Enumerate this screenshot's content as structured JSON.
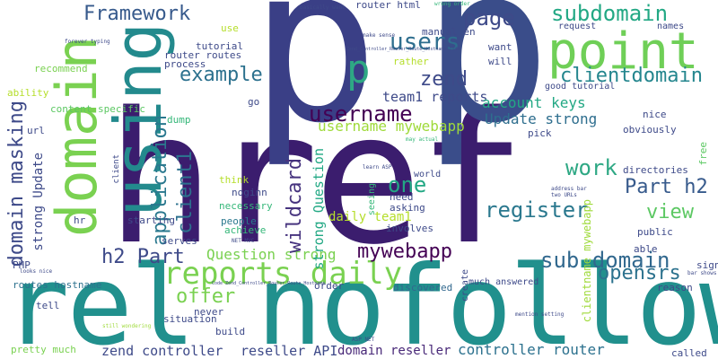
{
  "words": [
    {
      "text": "href",
      "color": "#3b1d6e"
    },
    {
      "text": "rel nofollow",
      "color": "#21908d"
    },
    {
      "text": "p",
      "color": "#3a3f86"
    },
    {
      "text": "p",
      "color": "#3a4d8a"
    },
    {
      "text": "point",
      "color": "#6fcf57"
    },
    {
      "text": "domain",
      "color": "#7ad151"
    },
    {
      "text": "using",
      "color": "#238a8d"
    },
    {
      "text": "p",
      "color": "#2ea884"
    },
    {
      "text": "reports daily",
      "color": "#7ad151"
    },
    {
      "text": "users",
      "color": "#2e6e8e"
    },
    {
      "text": "page",
      "color": "#3e4a89"
    },
    {
      "text": "subdomain",
      "color": "#22a884"
    },
    {
      "text": "Framework",
      "color": "#375a8c"
    },
    {
      "text": "example",
      "color": "#2c718e"
    },
    {
      "text": "zend",
      "color": "#3e4a89"
    },
    {
      "text": "clientdomain",
      "color": "#24868e"
    },
    {
      "text": "username",
      "color": "#440154"
    },
    {
      "text": "username mywebapp",
      "color": "#9fda3a"
    },
    {
      "text": "team1 reports",
      "color": "#3e4a89"
    },
    {
      "text": "account keys",
      "color": "#22a884"
    },
    {
      "text": "Update strong",
      "color": "#2e6e8e"
    },
    {
      "text": "work",
      "color": "#2ea884"
    },
    {
      "text": "Part h2",
      "color": "#375a8c"
    },
    {
      "text": "one",
      "color": "#22a884"
    },
    {
      "text": "register",
      "color": "#2a788e"
    },
    {
      "text": "view",
      "color": "#5cc863"
    },
    {
      "text": "h2 Part",
      "color": "#3e4a89"
    },
    {
      "text": "Question strong",
      "color": "#7ad151"
    },
    {
      "text": "mywebapp",
      "color": "#440154"
    },
    {
      "text": "sub domain",
      "color": "#31688e"
    },
    {
      "text": "opensrs",
      "color": "#2c728e"
    },
    {
      "text": "offer",
      "color": "#7ad151"
    },
    {
      "text": "daily team1",
      "color": "#b5de2b"
    },
    {
      "text": "zend controller",
      "color": "#3e4a89"
    },
    {
      "text": "reseller API",
      "color": "#3e4a89"
    },
    {
      "text": "domain reseller",
      "color": "#482878"
    },
    {
      "text": "controller router",
      "color": "#2c718e"
    },
    {
      "text": "domain masking",
      "color": "#3e4a89"
    },
    {
      "text": "strong Update",
      "color": "#3e4a89"
    },
    {
      "text": "application",
      "color": "#2a788e"
    },
    {
      "text": "client1",
      "color": "#2c718e"
    },
    {
      "text": "wildcard",
      "color": "#46337e"
    },
    {
      "text": "strong Question",
      "color": "#22a884"
    },
    {
      "text": "clientname mywebapp",
      "color": "#9fda3a"
    },
    {
      "text": "much answered",
      "color": "#3e4a89"
    },
    {
      "text": "discovered",
      "color": "#31688e"
    },
    {
      "text": "involves",
      "color": "#3e4a89"
    },
    {
      "text": "asking",
      "color": "#3e4a89"
    },
    {
      "text": "need",
      "color": "#3e4a89"
    },
    {
      "text": "people",
      "color": "#2a788e"
    },
    {
      "text": "achieve",
      "color": "#35b779"
    },
    {
      "text": "necessary",
      "color": "#35b779"
    },
    {
      "text": "noginn",
      "color": "#3e4a89"
    },
    {
      "text": "starting",
      "color": "#3e4a89"
    },
    {
      "text": "serves",
      "color": "#3e4a89"
    },
    {
      "text": "never",
      "color": "#3e4a89"
    },
    {
      "text": "situation",
      "color": "#3e4a89"
    },
    {
      "text": "build",
      "color": "#3e4a89"
    },
    {
      "text": "order",
      "color": "#3e4a89"
    },
    {
      "text": "PHP",
      "color": "#3e4a89"
    },
    {
      "text": "routes hostname",
      "color": "#2c718e"
    },
    {
      "text": "tell",
      "color": "#3e4a89"
    },
    {
      "text": "pretty much",
      "color": "#7ad151"
    },
    {
      "text": "content specific",
      "color": "#5cc863"
    },
    {
      "text": "recommend",
      "color": "#7ad151"
    },
    {
      "text": "ability",
      "color": "#b5de2b"
    },
    {
      "text": "url",
      "color": "#3e4a89"
    },
    {
      "text": "router html",
      "color": "#3e4a89"
    },
    {
      "text": "manual en",
      "color": "#3e4a89"
    },
    {
      "text": "tutorial",
      "color": "#3e4a89"
    },
    {
      "text": "router routes",
      "color": "#3e4a89"
    },
    {
      "text": "process",
      "color": "#3e4a89"
    },
    {
      "text": "rather",
      "color": "#b5de2b"
    },
    {
      "text": "use",
      "color": "#b5de2b"
    },
    {
      "text": "go",
      "color": "#3e4a89"
    },
    {
      "text": "dump",
      "color": "#35b779"
    },
    {
      "text": "want",
      "color": "#3e4a89"
    },
    {
      "text": "will",
      "color": "#3e4a89"
    },
    {
      "text": "request",
      "color": "#3e4a89"
    },
    {
      "text": "names",
      "color": "#3e4a89"
    },
    {
      "text": "good tutorial",
      "color": "#3e4a89"
    },
    {
      "text": "nice",
      "color": "#3e4a89"
    },
    {
      "text": "obviously",
      "color": "#3e4a89"
    },
    {
      "text": "pick",
      "color": "#3e4a89"
    },
    {
      "text": "free",
      "color": "#5cc863"
    },
    {
      "text": "directories",
      "color": "#3e4a89"
    },
    {
      "text": "public",
      "color": "#3e4a89"
    },
    {
      "text": "able",
      "color": "#3e4a89"
    },
    {
      "text": "sign",
      "color": "#3e4a89"
    },
    {
      "text": "reason",
      "color": "#3e4a89"
    },
    {
      "text": "called",
      "color": "#3e4a89"
    },
    {
      "text": "world",
      "color": "#3e4a89"
    },
    {
      "text": "seeing",
      "color": "#35b779"
    },
    {
      "text": "think",
      "color": "#b5de2b"
    },
    {
      "text": "hr",
      "color": "#3e4a89"
    },
    {
      "text": "client",
      "color": "#3e4a89"
    },
    {
      "text": "create",
      "color": "#3e4a89"
    },
    {
      "text": "forever typing",
      "color": "#3e4a89"
    },
    {
      "text": "basically want",
      "color": "#3e4a89"
    },
    {
      "text": "make sense",
      "color": "#3e4a89"
    },
    {
      "text": "wrong order",
      "color": "#35b779"
    },
    {
      "text": "Zend_Controller_Router_Route_Hostname code",
      "color": "#3e4a89"
    },
    {
      "text": "Code Zend_Controller_Router_Route_Hostname",
      "color": "#3e4a89"
    },
    {
      "text": "looks nice",
      "color": "#3e4a89"
    },
    {
      "text": "learn ASP",
      "color": "#3e4a89"
    },
    {
      "text": "NET MVC",
      "color": "#3e4a89"
    },
    {
      "text": "ASP NET",
      "color": "#3e4a89"
    },
    {
      "text": "still wondering",
      "color": "#9fda3a"
    },
    {
      "text": "mention setting",
      "color": "#3e4a89"
    },
    {
      "text": "bar shows",
      "color": "#3e4a89"
    },
    {
      "text": "may actual",
      "color": "#35b779"
    },
    {
      "text": "address bar",
      "color": "#3e4a89"
    },
    {
      "text": "two URLs",
      "color": "#3e4a89"
    }
  ]
}
